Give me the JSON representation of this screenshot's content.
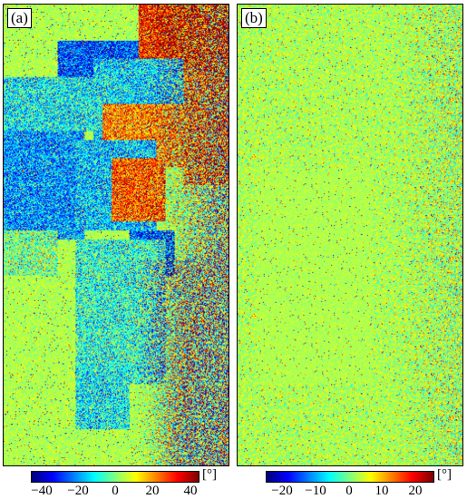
{
  "panels": [
    {
      "label": "(a)",
      "range": [
        -40,
        40
      ],
      "colorbar_ticks": [
        "−40",
        "−20",
        "0",
        "20",
        "40"
      ],
      "unit": "[°]"
    },
    {
      "label": "(b)",
      "range": [
        -25,
        25
      ],
      "colorbar_ticks": [
        "−20",
        "−10",
        "0",
        "10",
        "20"
      ],
      "unit": "[°]"
    }
  ],
  "colormap": "jet",
  "colors": {
    "noise_green": "#7fe07a",
    "cyan": "#38d6e6",
    "blue": "#1f2bd0",
    "orange": "#f4a020",
    "red": "#b01010"
  }
}
